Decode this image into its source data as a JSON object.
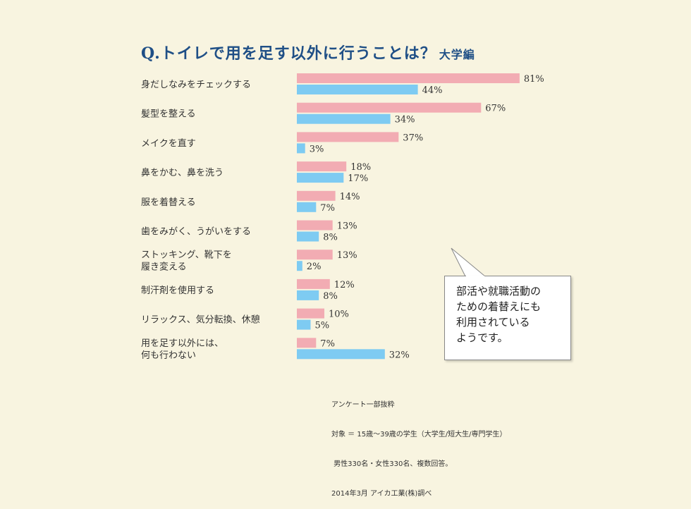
{
  "title": {
    "main": "Q.トイレで用を足す以外に行うことは？",
    "sub": "大学編"
  },
  "chart_data": {
    "type": "bar",
    "orientation": "horizontal",
    "unit": "%",
    "categories": [
      [
        "身だしなみをチェックする"
      ],
      [
        "髪型を整える"
      ],
      [
        "メイクを直す"
      ],
      [
        "鼻をかむ、鼻を洗う"
      ],
      [
        "服を着替える"
      ],
      [
        "歯をみがく、うがいをする"
      ],
      [
        "ストッキング、靴下を",
        "履き変える"
      ],
      [
        "制汗剤を使用する"
      ],
      [
        "リラックス、気分転換、休憩"
      ],
      [
        "用を足す以外には、",
        "何も行わない"
      ]
    ],
    "series": [
      {
        "values": [
          81,
          67,
          37,
          18,
          14,
          13,
          13,
          12,
          10,
          7
        ],
        "color": "#f2acb3"
      },
      {
        "values": [
          44,
          34,
          3,
          17,
          7,
          8,
          2,
          8,
          5,
          32
        ],
        "color": "#7ecbf2"
      }
    ]
  },
  "callout": [
    "部活や就職活動の",
    "ための着替えにも",
    "利用されている",
    "ようです。"
  ],
  "source": [
    "アンケート一部抜粋",
    "対象 ＝ 15歳～39歳の学生（大学生/短大生/専門学生）",
    " 男性330名・女性330名、複数回答。",
    "2014年3月 アイカ工業(株)調べ"
  ]
}
